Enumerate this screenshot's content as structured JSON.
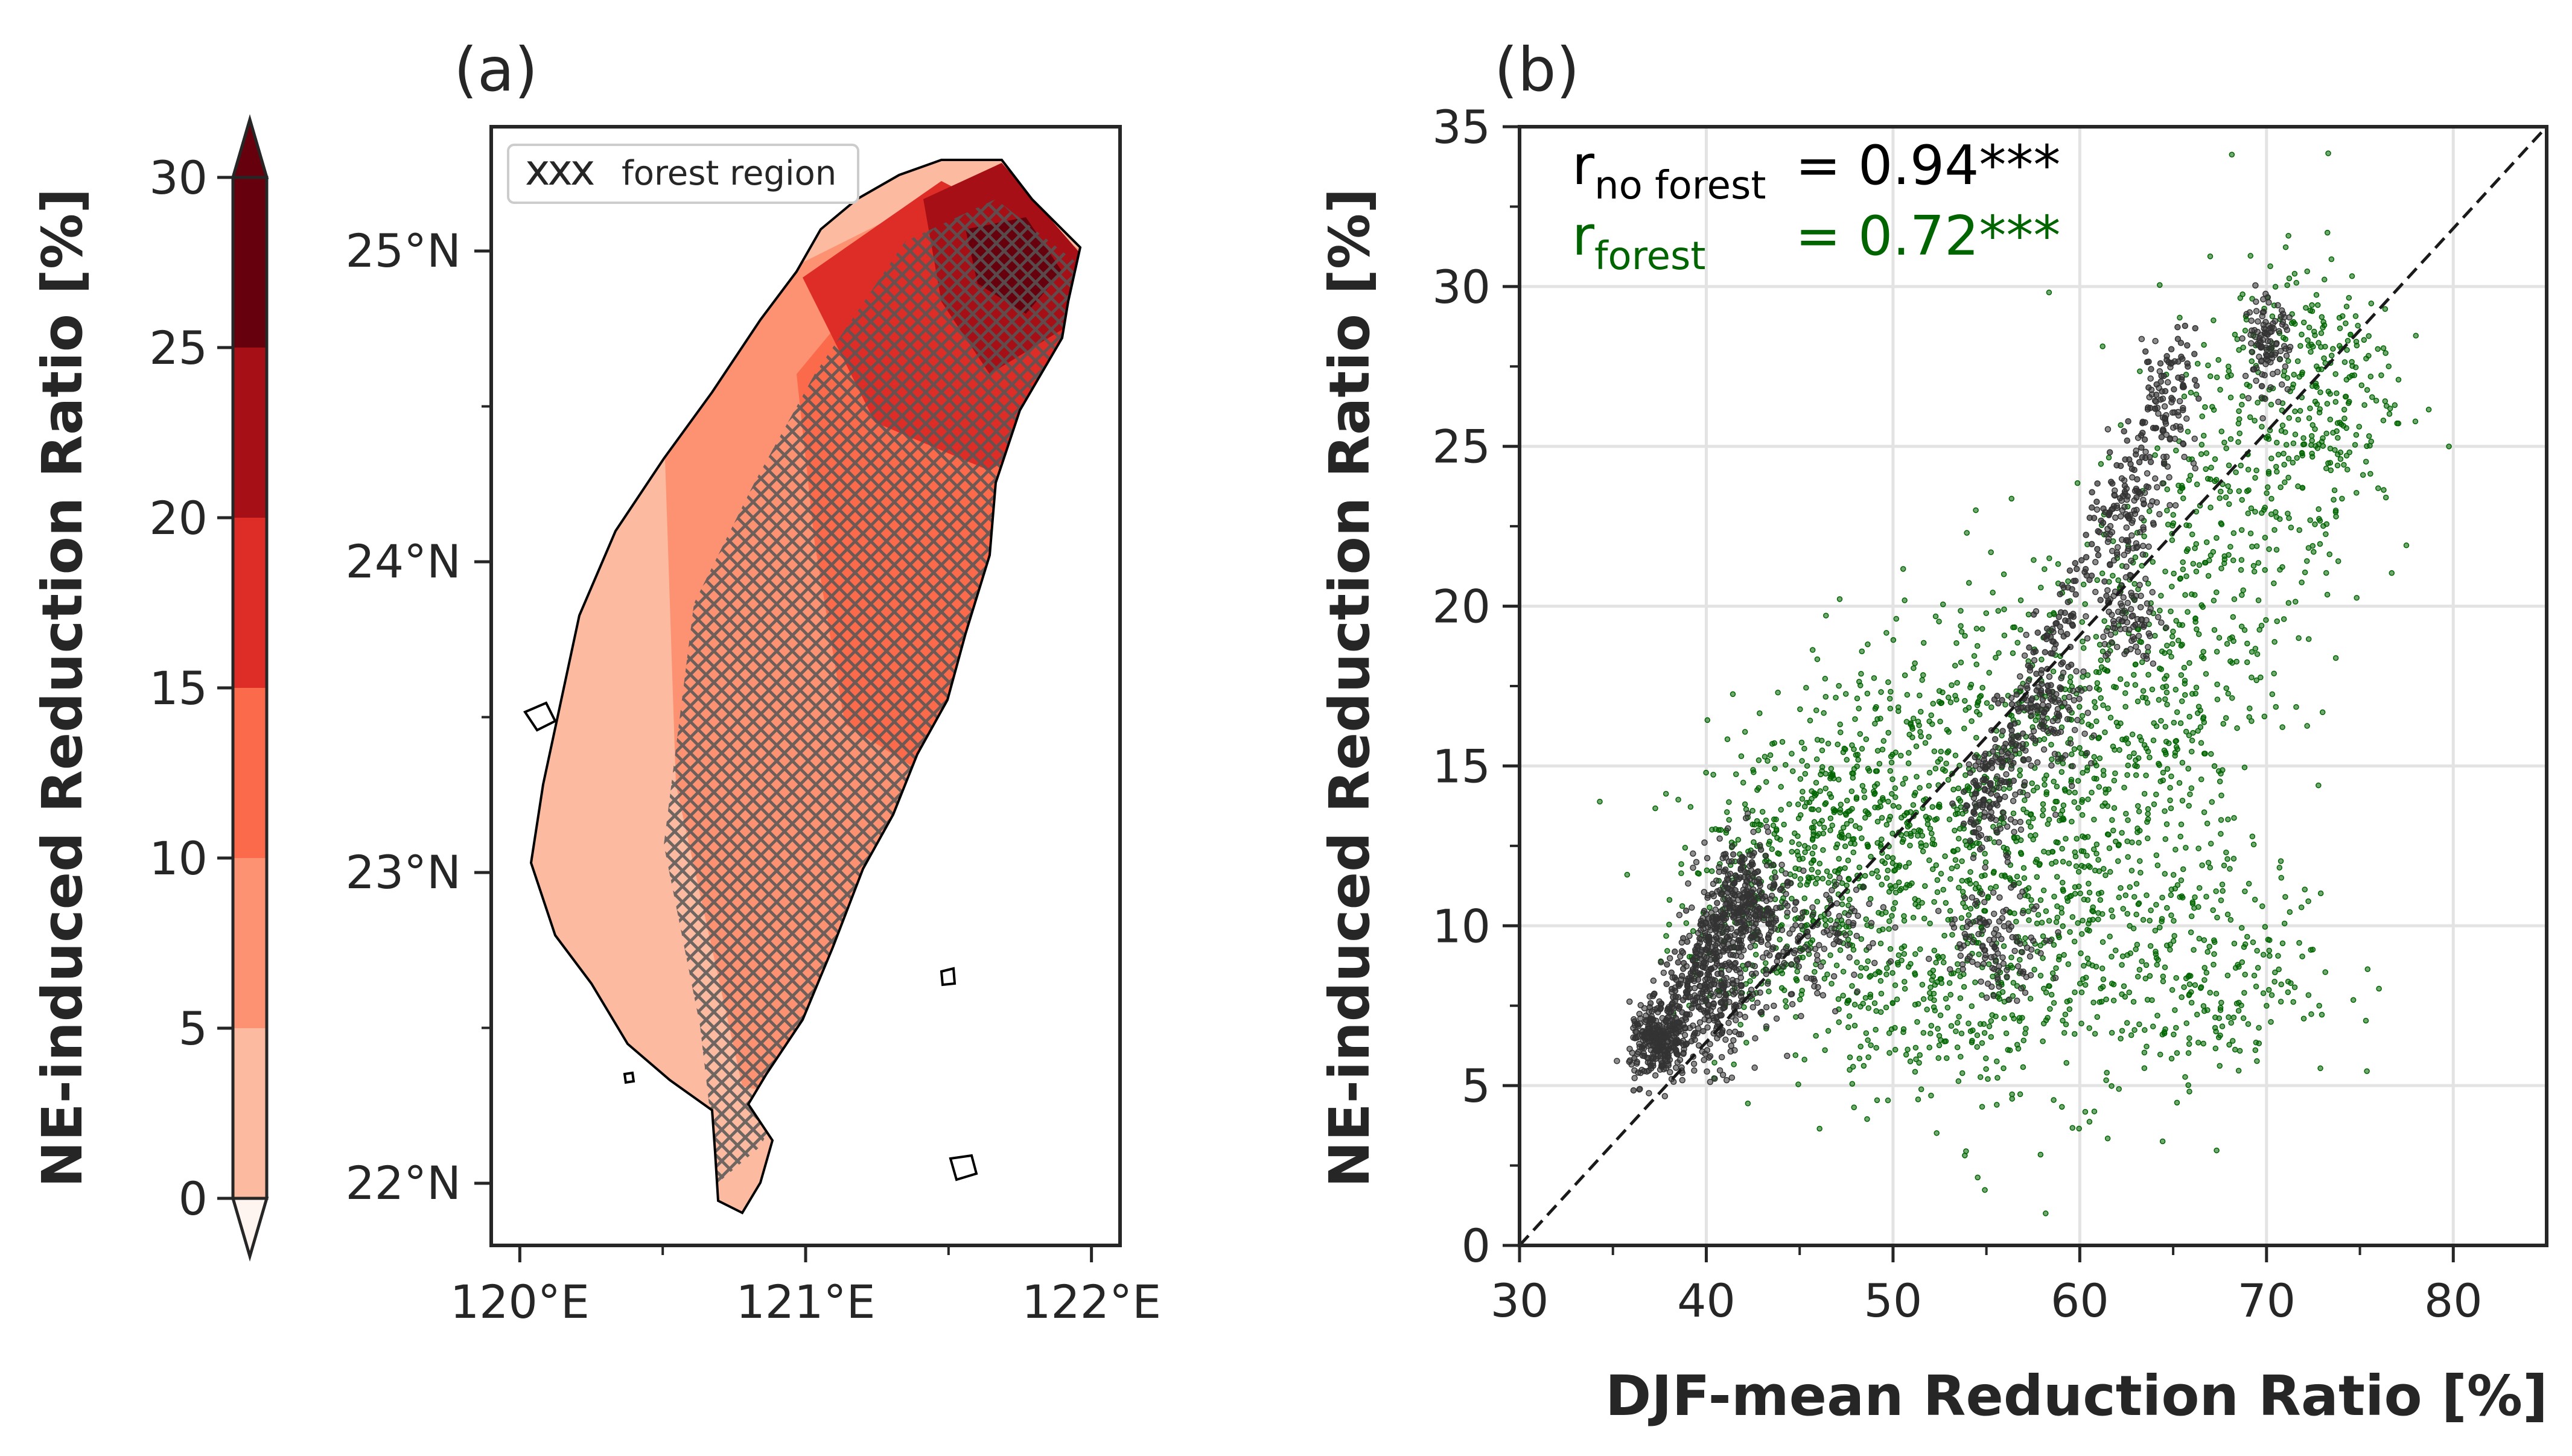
{
  "panel_labels": {
    "a": "(a)",
    "b": "(b)"
  },
  "colorbar": {
    "label": "NE-induced Reduction Ratio [%]",
    "ticks": [
      "0",
      "5",
      "10",
      "15",
      "20",
      "25",
      "30"
    ],
    "levels": [
      0,
      5,
      10,
      15,
      20,
      25,
      30
    ],
    "extend": "both",
    "colors": [
      "#fff5f0",
      "#fcbba1",
      "#fc9272",
      "#fb6a4a",
      "#de2d26",
      "#a50f15",
      "#67000d"
    ]
  },
  "map": {
    "lat_ticks": [
      "22°N",
      "23°N",
      "24°N",
      "25°N"
    ],
    "lon_ticks": [
      "120°E",
      "121°E",
      "122°E"
    ],
    "legend": {
      "label": "forest region",
      "symbol": "xxx"
    }
  },
  "scatter": {
    "stats": {
      "no_forest": {
        "r": "r",
        "sub": "no forest",
        "value": "= 0.94***",
        "color": "#000000"
      },
      "forest": {
        "r": "r",
        "sub": "forest",
        "value": "= 0.72***",
        "color": "#006400"
      }
    }
  },
  "chart_data": [
    {
      "type": "heatmap",
      "panel": "(a)",
      "description_type": "filled contour map over Taiwan with forest-region hatching",
      "xlabel": "",
      "ylabel": "",
      "xticks": [
        "120°E",
        "121°E",
        "122°E"
      ],
      "yticks": [
        "22°N",
        "23°N",
        "24°N",
        "25°N"
      ],
      "xlim": [
        119.9,
        122.1
      ],
      "ylim": [
        21.8,
        25.4
      ],
      "colorbar_label": "NE-induced Reduction Ratio [%]",
      "colorbar_levels": [
        0,
        5,
        10,
        15,
        20,
        25,
        30
      ],
      "legend": [
        "forest region"
      ],
      "legend_position": "top-left"
    },
    {
      "type": "scatter",
      "panel": "(b)",
      "xlabel": "DJF-mean Reduction Ratio [%]",
      "ylabel": "NE-induced Reduction Ratio [%]",
      "xlim": [
        30,
        85
      ],
      "ylim": [
        0,
        35
      ],
      "xticks": [
        30,
        40,
        50,
        60,
        70,
        80
      ],
      "yticks": [
        0,
        5,
        10,
        15,
        20,
        25,
        30,
        35
      ],
      "grid": true,
      "reference_line": "1:1 dashed",
      "series": [
        {
          "name": "no forest",
          "color": "#333333",
          "clusters": [
            {
              "center": [
                37.5,
                6.3
              ],
              "spread": [
                0.8,
                0.6
              ],
              "n": 260
            },
            {
              "center": [
                40.5,
                8.0
              ],
              "spread": [
                1.2,
                1.2
              ],
              "n": 280
            },
            {
              "center": [
                42.0,
                10.5
              ],
              "spread": [
                1.2,
                1.1
              ],
              "n": 240
            },
            {
              "center": [
                46.0,
                9.5
              ],
              "spread": [
                1.6,
                0.9
              ],
              "n": 110
            },
            {
              "center": [
                55.5,
                9.5
              ],
              "spread": [
                1.4,
                0.8
              ],
              "n": 120
            },
            {
              "center": [
                55.5,
                14.0
              ],
              "spread": [
                0.9,
                0.8
              ],
              "n": 90
            },
            {
              "center": [
                58.5,
                17.0
              ],
              "spread": [
                1.0,
                1.2
              ],
              "n": 110
            },
            {
              "center": [
                62.5,
                19.5
              ],
              "spread": [
                0.9,
                0.6
              ],
              "n": 80
            },
            {
              "center": [
                62.5,
                22.5
              ],
              "spread": [
                0.8,
                1.0
              ],
              "n": 90
            },
            {
              "center": [
                64.5,
                25.5
              ],
              "spread": [
                0.8,
                1.0
              ],
              "n": 70
            },
            {
              "center": [
                70.0,
                28.2
              ],
              "spread": [
                0.6,
                0.7
              ],
              "n": 110
            }
          ],
          "trend_segments": [
            [
              [
                37,
                6
              ],
              [
                43,
                12
              ]
            ],
            [
              [
                54,
                13
              ],
              [
                66,
                28.5
              ]
            ]
          ]
        },
        {
          "name": "forest",
          "color": "#006400",
          "clusters": [
            {
              "center": [
                43.0,
                11.0
              ],
              "spread": [
                2.5,
                2.5
              ],
              "n": 260
            },
            {
              "center": [
                47.5,
                12.5
              ],
              "spread": [
                2.5,
                2.2
              ],
              "n": 320
            },
            {
              "center": [
                53.0,
                13.5
              ],
              "spread": [
                3.5,
                3.5
              ],
              "n": 420
            },
            {
              "center": [
                60.0,
                12.0
              ],
              "spread": [
                4.0,
                3.5
              ],
              "n": 480
            },
            {
              "center": [
                63.0,
                17.5
              ],
              "spread": [
                3.5,
                3.0
              ],
              "n": 320
            },
            {
              "center": [
                68.5,
                23.5
              ],
              "spread": [
                3.0,
                3.0
              ],
              "n": 260
            },
            {
              "center": [
                72.5,
                27.0
              ],
              "spread": [
                2.2,
                2.0
              ],
              "n": 240
            },
            {
              "center": [
                67.0,
                8.5
              ],
              "spread": [
                3.5,
                1.8
              ],
              "n": 220
            },
            {
              "center": [
                52.0,
                7.5
              ],
              "spread": [
                3.0,
                1.5
              ],
              "n": 180
            }
          ]
        }
      ],
      "correlations": {
        "no forest": 0.94,
        "forest": 0.72
      }
    }
  ]
}
